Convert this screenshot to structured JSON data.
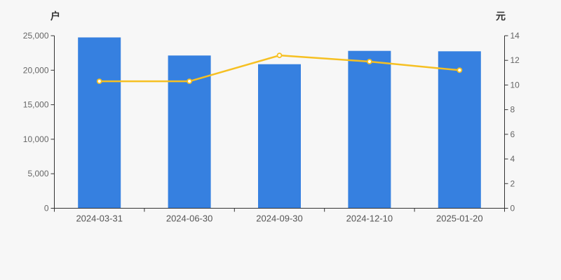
{
  "chart_data": {
    "type": "combo_bar_line",
    "categories": [
      "2024-03-31",
      "2024-06-30",
      "2024-09-30",
      "2024-12-10",
      "2025-01-20"
    ],
    "series": [
      {
        "name": "bar-series",
        "type": "bar",
        "axis": "left",
        "values": [
          24750,
          22130,
          20870,
          22800,
          22740
        ]
      },
      {
        "name": "line-series",
        "type": "line",
        "axis": "right",
        "values": [
          10.3,
          10.3,
          12.4,
          11.9,
          11.2
        ]
      }
    ],
    "axes": {
      "left": {
        "unit": "户",
        "min": 0,
        "max": 25000,
        "tick_interval": 5000,
        "tick_labels": [
          "0",
          "5,000",
          "10,000",
          "15,000",
          "20,000",
          "25,000"
        ]
      },
      "right": {
        "unit": "元",
        "min": 0,
        "max": 14,
        "tick_interval": 2,
        "tick_labels": [
          "0",
          "2",
          "4",
          "6",
          "8",
          "10",
          "12",
          "14"
        ]
      }
    },
    "grid": false,
    "legend": false,
    "title": "",
    "colors": {
      "background": "#f7f7f7",
      "bar": "#3680e0",
      "line": "#f6c022",
      "marker_fill": "#ffffff",
      "axis_line": "#333333",
      "tick_text": "#666666"
    }
  }
}
